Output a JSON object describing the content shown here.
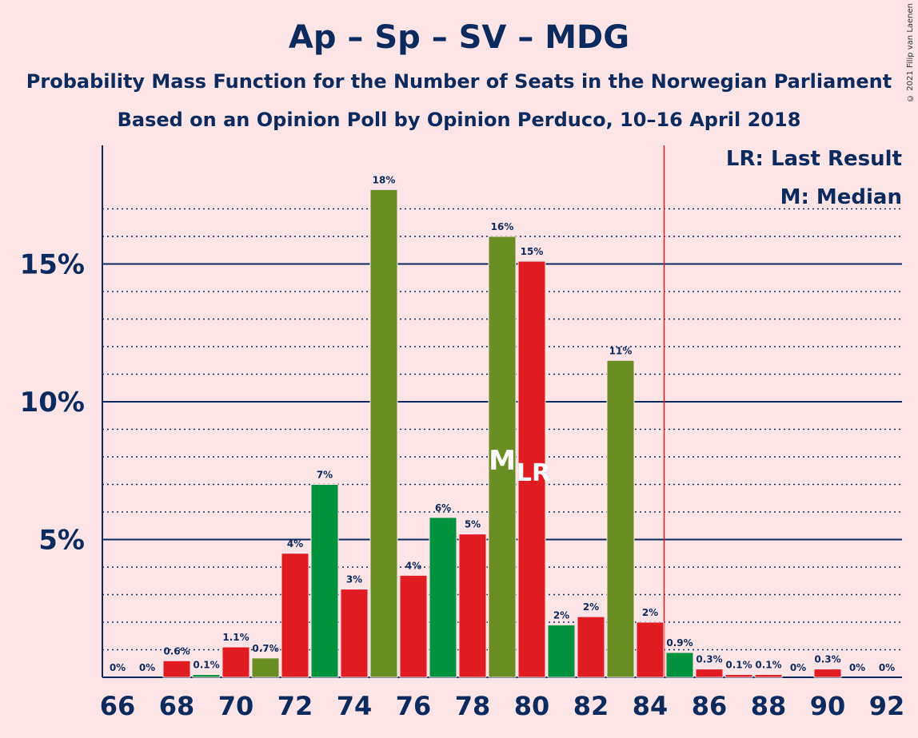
{
  "title": "Ap – Sp – SV – MDG",
  "subtitle1": "Probability Mass Function for the Number of Seats in the Norwegian Parliament",
  "subtitle2": "Based on an Opinion Poll by Opinion Perduco, 10–16 April 2018",
  "copyright": "© 2021 Filip van Laenen",
  "legend": {
    "last_result": "LR: Last Result",
    "median": "M: Median"
  },
  "colors": {
    "red": "#e01b22",
    "green": "#00913e",
    "olive": "#6a8e23",
    "axis": "#0b2a5e",
    "majority_line": "#e01b22"
  },
  "chart_data": {
    "type": "bar",
    "x": [
      66,
      67,
      68,
      69,
      70,
      71,
      72,
      73,
      74,
      75,
      76,
      77,
      78,
      79,
      80,
      81,
      82,
      83,
      84,
      85,
      86,
      87,
      88,
      89,
      90,
      91,
      92
    ],
    "values": [
      0,
      0,
      0.6,
      0.1,
      1.1,
      0.7,
      4.5,
      7.0,
      3.2,
      17.7,
      3.7,
      5.8,
      5.2,
      16.0,
      15.1,
      1.9,
      2.2,
      11.5,
      2.0,
      0.9,
      0.3,
      0.1,
      0.1,
      0,
      0.3,
      0,
      0
    ],
    "value_labels": [
      "0%",
      "0%",
      "0.6%",
      "0.1%",
      "1.1%",
      "0.7%",
      "4%",
      "7%",
      "3%",
      "18%",
      "4%",
      "6%",
      "5%",
      "16%",
      "15%",
      "2%",
      "2%",
      "11%",
      "2%",
      "0.9%",
      "0.3%",
      "0.1%",
      "0.1%",
      "0%",
      "0.3%",
      "0%",
      "0%"
    ],
    "bar_colors": [
      "red",
      "red",
      "red",
      "green",
      "red",
      "olive",
      "red",
      "green",
      "red",
      "olive",
      "red",
      "green",
      "red",
      "olive",
      "red",
      "green",
      "red",
      "olive",
      "red",
      "green",
      "red",
      "red",
      "red",
      "red",
      "red",
      "red",
      "red"
    ],
    "x_tick_labels": [
      "66",
      "68",
      "70",
      "72",
      "74",
      "76",
      "78",
      "80",
      "82",
      "84",
      "86",
      "88",
      "90",
      "92"
    ],
    "y_ticks": [
      5,
      10,
      15
    ],
    "y_tick_labels": [
      "5%",
      "10%",
      "15%"
    ],
    "ylim": [
      0,
      19.3
    ],
    "median_seat": 79,
    "median_marker": "M",
    "last_result_seat": 80,
    "last_result_marker": "LR",
    "majority_threshold": 85,
    "legend_placement": "top-right"
  }
}
